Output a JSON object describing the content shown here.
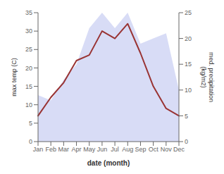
{
  "chart_data": {
    "type": "line",
    "categories": [
      "Jan",
      "Feb",
      "Mar",
      "Apr",
      "May",
      "Jun",
      "Jul",
      "Aug",
      "Sep",
      "Oct",
      "Nov",
      "Dec"
    ],
    "series": [
      {
        "type": "area",
        "axis": "y2",
        "color": "#b8bfee",
        "values": [
          9,
          8,
          12,
          15,
          22,
          25,
          22,
          25,
          19,
          20,
          21,
          10
        ]
      },
      {
        "type": "line",
        "color": "#993333",
        "values": [
          7,
          12,
          16,
          22,
          23.5,
          30,
          28,
          32,
          24,
          15,
          9,
          7
        ]
      }
    ],
    "xlabel": "date (month)",
    "ylabel": "max temp (C)",
    "y2label": "med. precipitation\n(kg/m2)",
    "ylim": [
      0,
      35
    ],
    "yticks": [
      0,
      5,
      10,
      15,
      20,
      25,
      30,
      35
    ],
    "y2lim": [
      0,
      25
    ],
    "y2ticks": [
      0,
      5,
      10,
      15,
      20,
      25
    ],
    "grid": false
  }
}
